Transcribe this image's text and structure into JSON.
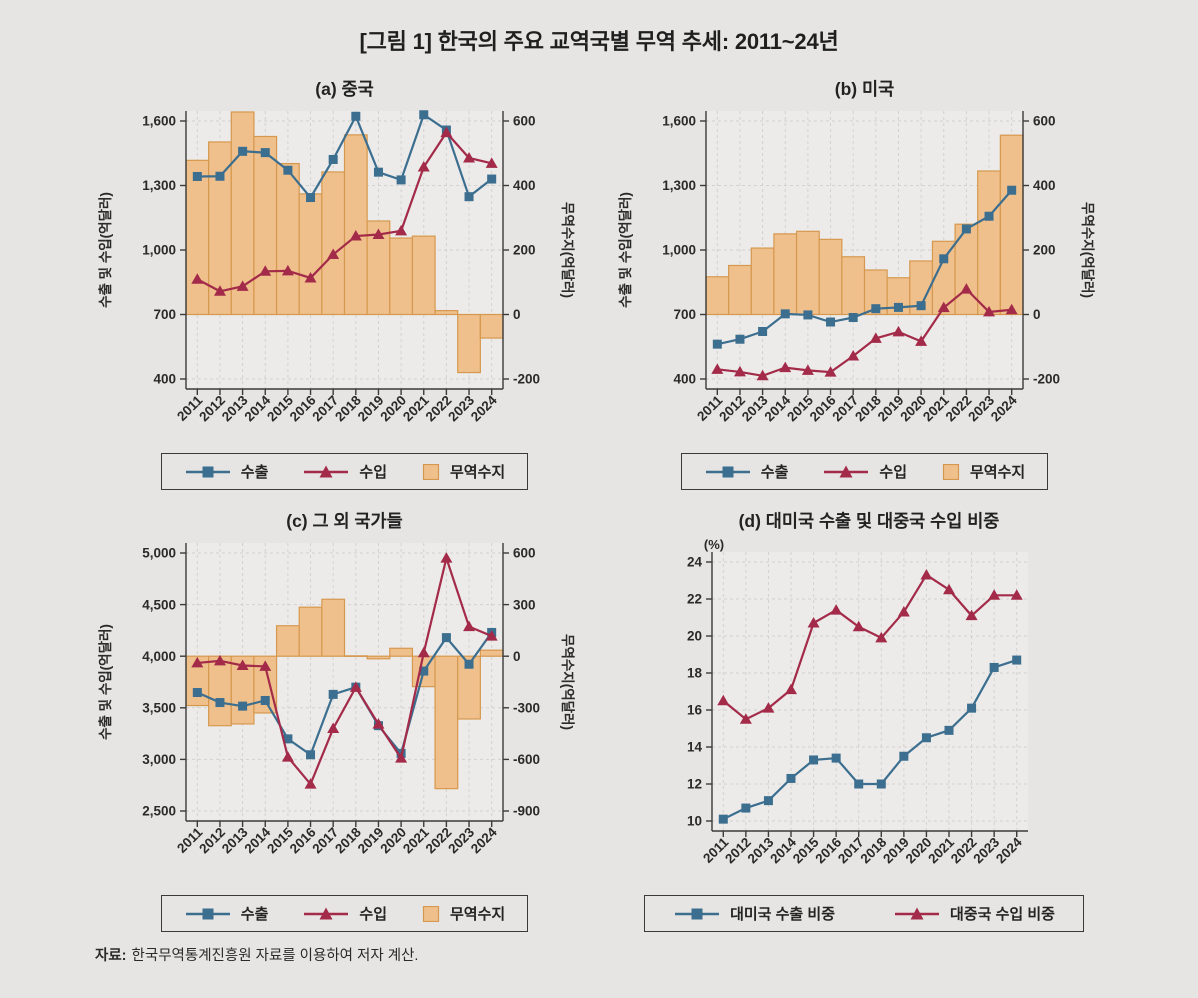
{
  "figure": {
    "title": "[그림 1] 한국의 주요 교역국별 무역 추세: 2011~24년",
    "source": {
      "label": "자료:",
      "text": "한국무역통계진흥원 자료를 이용하여 저자 계산."
    }
  },
  "colors": {
    "export": "#3C6E8F",
    "import": "#A32B49",
    "balance_fill": "#EFC08C",
    "balance_stroke": "#D6984E",
    "page_bg": "#E6E5E3",
    "plot_bg": "#ECEBE9",
    "grid": "#D3D2D0",
    "axis": "#3A3A3A",
    "text": "#2A2A2A"
  },
  "chart_data": [
    {
      "panel": "a",
      "type": "line+bar",
      "title": "(a) 중국",
      "x": [
        "2011",
        "2012",
        "2013",
        "2014",
        "2015",
        "2016",
        "2017",
        "2018",
        "2019",
        "2020",
        "2021",
        "2022",
        "2023",
        "2024"
      ],
      "ylabel_left": "수출 및 수입(억달러)",
      "ylabel_right": "무역수지(억달러)",
      "ylim_left": [
        400,
        1600
      ],
      "yticks_left": [
        400,
        700,
        1000,
        1300,
        1600
      ],
      "ylim_right": [
        -200,
        600
      ],
      "yticks_right": [
        -200,
        0,
        200,
        400,
        600
      ],
      "grid": true,
      "legend_position": "bottom",
      "series": [
        {
          "name": "수출",
          "type": "line",
          "marker": "square",
          "axis": "left",
          "color_key": "export",
          "values": [
            1342,
            1343,
            1459,
            1453,
            1371,
            1244,
            1421,
            1622,
            1362,
            1326,
            1629,
            1558,
            1248,
            1330
          ]
        },
        {
          "name": "수입",
          "type": "line",
          "marker": "triangle",
          "axis": "left",
          "color_key": "import",
          "values": [
            864,
            808,
            831,
            901,
            903,
            870,
            979,
            1065,
            1072,
            1089,
            1386,
            1546,
            1428,
            1403
          ]
        },
        {
          "name": "무역수지",
          "type": "bar",
          "axis": "right",
          "color_key": "balance",
          "values": [
            478,
            535,
            628,
            552,
            468,
            374,
            442,
            557,
            290,
            237,
            243,
            12,
            -180,
            -73
          ]
        }
      ],
      "legend": [
        {
          "label": "수출",
          "swatch": "line-square",
          "color_key": "export"
        },
        {
          "label": "수입",
          "swatch": "line-triangle",
          "color_key": "import"
        },
        {
          "label": "무역수지",
          "swatch": "bar",
          "color_key": "balance"
        }
      ]
    },
    {
      "panel": "b",
      "type": "line+bar",
      "title": "(b) 미국",
      "x": [
        "2011",
        "2012",
        "2013",
        "2014",
        "2015",
        "2016",
        "2017",
        "2018",
        "2019",
        "2020",
        "2021",
        "2022",
        "2023",
        "2024"
      ],
      "ylabel_left": "수출 및 수입(억달러)",
      "ylabel_right": "무역수지(억달러)",
      "ylim_left": [
        400,
        1600
      ],
      "yticks_left": [
        400,
        700,
        1000,
        1300,
        1600
      ],
      "ylim_right": [
        -200,
        600
      ],
      "yticks_right": [
        -200,
        0,
        200,
        400,
        600
      ],
      "grid": true,
      "legend_position": "bottom",
      "series": [
        {
          "name": "수출",
          "type": "line",
          "marker": "square",
          "axis": "left",
          "color_key": "export",
          "values": [
            562,
            585,
            621,
            703,
            698,
            665,
            686,
            727,
            733,
            741,
            959,
            1098,
            1157,
            1278
          ]
        },
        {
          "name": "수입",
          "type": "line",
          "marker": "triangle",
          "axis": "left",
          "color_key": "import",
          "values": [
            445,
            433,
            415,
            453,
            440,
            432,
            507,
            589,
            619,
            575,
            732,
            818,
            712,
            722
          ]
        },
        {
          "name": "무역수지",
          "type": "bar",
          "axis": "right",
          "color_key": "balance",
          "values": [
            117,
            152,
            206,
            250,
            258,
            233,
            179,
            138,
            114,
            166,
            227,
            280,
            445,
            556
          ]
        }
      ],
      "legend": [
        {
          "label": "수출",
          "swatch": "line-square",
          "color_key": "export"
        },
        {
          "label": "수입",
          "swatch": "line-triangle",
          "color_key": "import"
        },
        {
          "label": "무역수지",
          "swatch": "bar",
          "color_key": "balance"
        }
      ]
    },
    {
      "panel": "c",
      "type": "line+bar",
      "title": "(c) 그 외 국가들",
      "x": [
        "2011",
        "2012",
        "2013",
        "2014",
        "2015",
        "2016",
        "2017",
        "2018",
        "2019",
        "2020",
        "2021",
        "2022",
        "2023",
        "2024"
      ],
      "ylabel_left": "수출 및 수입(억달러)",
      "ylabel_right": "무역수지(억달러)",
      "ylim_left": [
        2500,
        5000
      ],
      "yticks_left": [
        2500,
        3000,
        3500,
        4000,
        4500,
        5000
      ],
      "ylim_right": [
        -900,
        600
      ],
      "yticks_right": [
        -900,
        -600,
        -300,
        0,
        300,
        600
      ],
      "grid": true,
      "legend_position": "bottom",
      "series": [
        {
          "name": "수출",
          "type": "line",
          "marker": "square",
          "axis": "left",
          "color_key": "export",
          "values": [
            3648,
            3551,
            3516,
            3571,
            3199,
            3045,
            3630,
            3700,
            3327,
            3058,
            3856,
            4180,
            3922,
            4230
          ]
        },
        {
          "name": "수입",
          "type": "line",
          "marker": "triangle",
          "axis": "left",
          "color_key": "import",
          "values": [
            3935,
            3955,
            3910,
            3901,
            3022,
            2760,
            3299,
            3698,
            3342,
            3012,
            4033,
            4950,
            4287,
            4195
          ]
        },
        {
          "name": "무역수지",
          "type": "bar",
          "axis": "right",
          "color_key": "balance",
          "values": [
            -287,
            -404,
            -394,
            -330,
            177,
            285,
            331,
            2,
            -15,
            46,
            -177,
            -770,
            -365,
            35
          ]
        }
      ],
      "legend": [
        {
          "label": "수출",
          "swatch": "line-square",
          "color_key": "export"
        },
        {
          "label": "수입",
          "swatch": "line-triangle",
          "color_key": "import"
        },
        {
          "label": "무역수지",
          "swatch": "bar",
          "color_key": "balance"
        }
      ]
    },
    {
      "panel": "d",
      "type": "line",
      "title": "(d) 대미국 수출 및 대중국 수입 비중",
      "unit": "(%)",
      "x": [
        "2011",
        "2012",
        "2013",
        "2014",
        "2015",
        "2016",
        "2017",
        "2018",
        "2019",
        "2020",
        "2021",
        "2022",
        "2023",
        "2024"
      ],
      "ylim_left": [
        10,
        24
      ],
      "yticks_left": [
        10,
        12,
        14,
        16,
        18,
        20,
        22,
        24
      ],
      "grid": true,
      "legend_position": "bottom",
      "series": [
        {
          "name": "대미국 수출 비중",
          "type": "line",
          "marker": "square",
          "axis": "left",
          "color_key": "export",
          "values": [
            10.1,
            10.7,
            11.1,
            12.3,
            13.3,
            13.4,
            12.0,
            12.0,
            13.5,
            14.5,
            14.9,
            16.1,
            18.3,
            18.7
          ]
        },
        {
          "name": "대중국 수입 비중",
          "type": "line",
          "marker": "triangle",
          "axis": "left",
          "color_key": "import",
          "values": [
            16.5,
            15.5,
            16.1,
            17.1,
            20.7,
            21.4,
            20.5,
            19.9,
            21.3,
            23.3,
            22.5,
            21.1,
            22.2,
            22.2
          ]
        }
      ],
      "legend": [
        {
          "label": "대미국 수출 비중",
          "swatch": "line-square",
          "color_key": "export"
        },
        {
          "label": "대중국 수입 비중",
          "swatch": "line-triangle",
          "color_key": "import"
        }
      ]
    }
  ]
}
